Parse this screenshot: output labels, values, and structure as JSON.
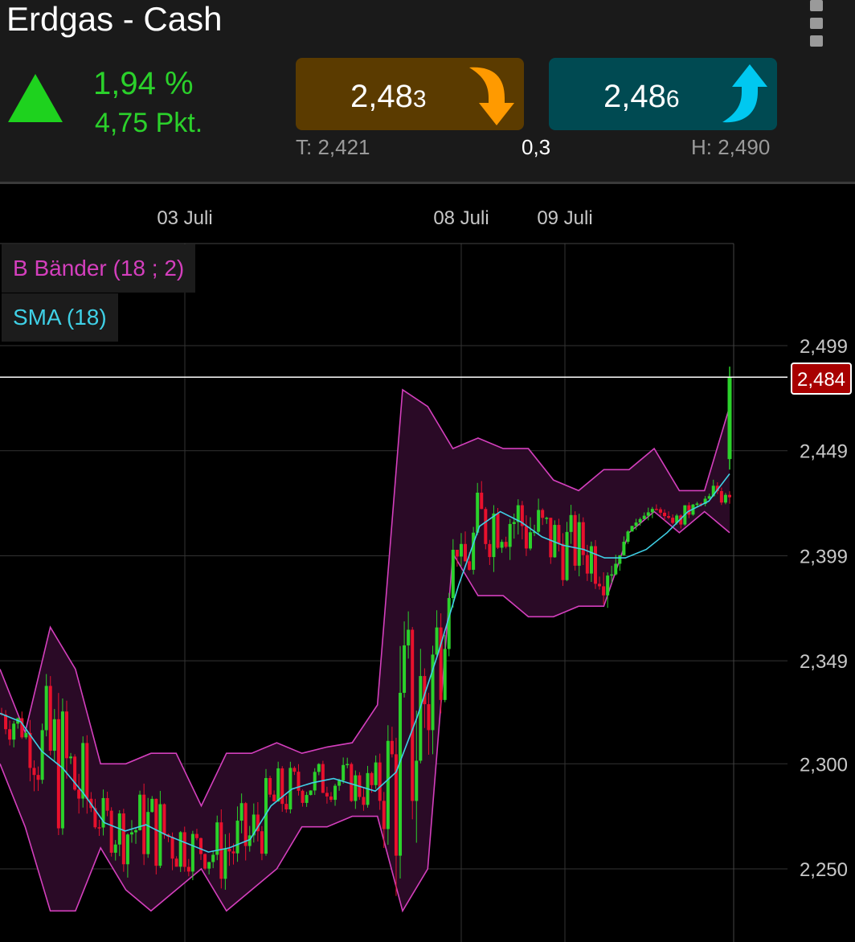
{
  "header": {
    "title": "Erdgas - Cash",
    "change_pct": "1,94 %",
    "change_pts": "4,75 Pkt.",
    "sell": {
      "main": "2,48",
      "last": "3"
    },
    "buy": {
      "main": "2,48",
      "last": "6"
    },
    "low": "T: 2,421",
    "spread": "0,3",
    "high": "H: 2,490"
  },
  "colors": {
    "up": "#2bd12b",
    "down": "#e8112d",
    "band": "#d43fbd",
    "sma": "#3fd0e6",
    "sell_btn": "#5b3b00",
    "buy_btn": "#004a52",
    "sell_arrow": "#ff9a00",
    "buy_arrow": "#00c8f0"
  },
  "icons": {
    "menu": "kebab-menu-icon",
    "trend": "triangle-up-icon",
    "sell": "curved-arrow-down-icon",
    "buy": "curved-arrow-up-icon"
  },
  "legend": {
    "bollinger": "B Bänder (18 ; 2)",
    "sma": "SMA (18)"
  },
  "chart_data": {
    "type": "candlestick",
    "x_labels": [
      "03 Juli",
      "08 Juli",
      "09 Juli"
    ],
    "y_ticks": [
      "2,499",
      "2,449",
      "2,399",
      "2,349",
      "2,300",
      "2,250"
    ],
    "y_values": [
      2.499,
      2.449,
      2.399,
      2.349,
      2.3,
      2.25
    ],
    "current_price_label": "2,484",
    "current_price": 2.484,
    "series": [
      {
        "name": "SMA (18)",
        "values": [
          2.324,
          2.32,
          2.306,
          2.298,
          2.286,
          2.272,
          2.268,
          2.271,
          2.266,
          2.262,
          2.258,
          2.26,
          2.264,
          2.28,
          2.288,
          2.291,
          2.293,
          2.29,
          2.287,
          2.296,
          2.322,
          2.352,
          2.385,
          2.413,
          2.42,
          2.415,
          2.408,
          2.404,
          2.402,
          2.398,
          2.398,
          2.402,
          2.41,
          2.42,
          2.425,
          2.438
        ]
      }
    ],
    "bollinger_upper": [
      2.345,
      2.315,
      2.365,
      2.345,
      2.3,
      2.3,
      2.305,
      2.305,
      2.28,
      2.305,
      2.305,
      2.31,
      2.305,
      2.308,
      2.31,
      2.328,
      2.478,
      2.47,
      2.45,
      2.455,
      2.45,
      2.45,
      2.435,
      2.43,
      2.44,
      2.44,
      2.45,
      2.43,
      2.43,
      2.47
    ],
    "bollinger_lower": [
      2.3,
      2.27,
      2.23,
      2.23,
      2.26,
      2.24,
      2.23,
      2.24,
      2.25,
      2.23,
      2.24,
      2.25,
      2.27,
      2.27,
      2.275,
      2.275,
      2.23,
      2.25,
      2.4,
      2.38,
      2.38,
      2.37,
      2.37,
      2.375,
      2.375,
      2.41,
      2.42,
      2.41,
      2.42,
      2.41
    ]
  }
}
